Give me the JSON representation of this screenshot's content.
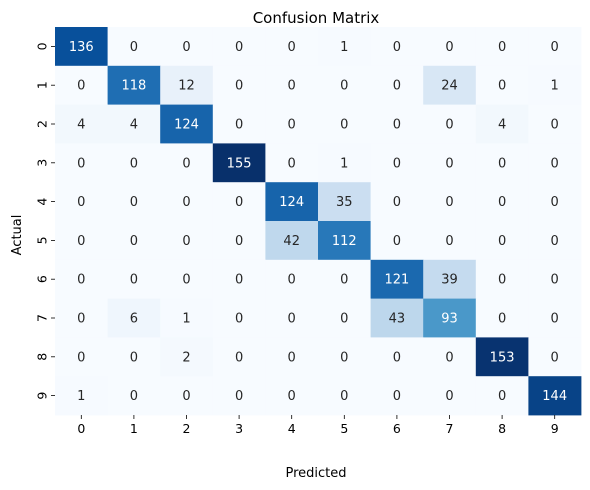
{
  "chart_data": {
    "type": "heatmap",
    "title": "Confusion Matrix",
    "xlabel": "Predicted",
    "ylabel": "Actual",
    "x_categories": [
      "0",
      "1",
      "2",
      "3",
      "4",
      "5",
      "6",
      "7",
      "8",
      "9"
    ],
    "y_categories": [
      "0",
      "1",
      "2",
      "3",
      "4",
      "5",
      "6",
      "7",
      "8",
      "9"
    ],
    "values": [
      [
        136,
        0,
        0,
        0,
        0,
        1,
        0,
        0,
        0,
        0
      ],
      [
        0,
        118,
        12,
        0,
        0,
        0,
        0,
        24,
        0,
        1
      ],
      [
        4,
        4,
        124,
        0,
        0,
        0,
        0,
        0,
        4,
        0
      ],
      [
        0,
        0,
        0,
        155,
        0,
        1,
        0,
        0,
        0,
        0
      ],
      [
        0,
        0,
        0,
        0,
        124,
        35,
        0,
        0,
        0,
        0
      ],
      [
        0,
        0,
        0,
        0,
        42,
        112,
        0,
        0,
        0,
        0
      ],
      [
        0,
        0,
        0,
        0,
        0,
        0,
        121,
        39,
        0,
        0
      ],
      [
        0,
        6,
        1,
        0,
        0,
        0,
        43,
        93,
        0,
        0
      ],
      [
        0,
        0,
        2,
        0,
        0,
        0,
        0,
        0,
        153,
        0
      ],
      [
        1,
        0,
        0,
        0,
        0,
        0,
        0,
        0,
        0,
        144
      ]
    ],
    "value_range": [
      0,
      155
    ],
    "colormap": "Blues",
    "colorbar": false,
    "grid": false
  }
}
